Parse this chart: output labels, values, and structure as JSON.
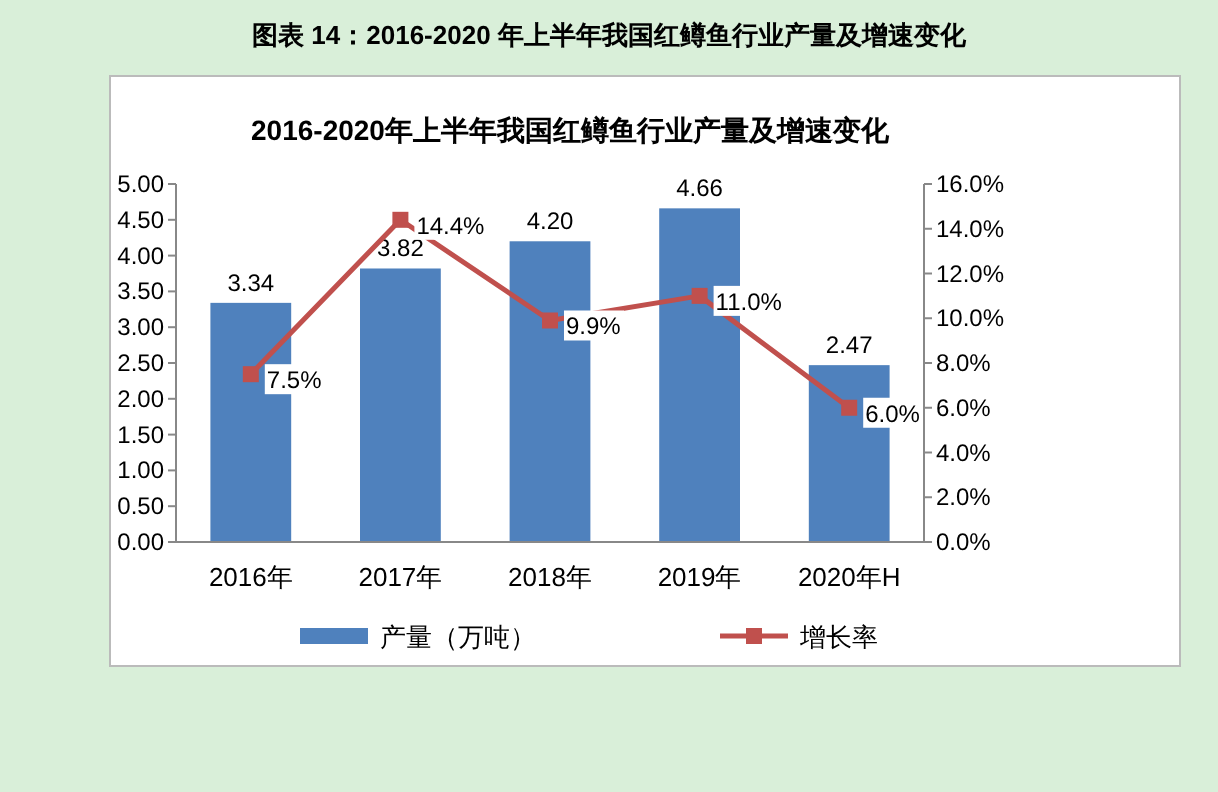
{
  "chart_data": {
    "type": "bar",
    "title": "图表  14：2016-2020 年上半年我国红鳟鱼行业产量及增速变化",
    "subtitle": "2016-2020年上半年我国红鳟鱼行业产量及增速变化",
    "categories": [
      "2016年",
      "2017年",
      "2018年",
      "2019年",
      "2020年H"
    ],
    "series": [
      {
        "name": "产量（万吨）",
        "color": "#4f81bd",
        "values": [
          3.34,
          3.82,
          4.2,
          4.66,
          2.47
        ],
        "value_labels": [
          "3.34",
          "3.82",
          "4.20",
          "4.66",
          "2.47"
        ]
      },
      {
        "name": "增长率",
        "type": "line",
        "axis": "y2",
        "color": "#c0504d",
        "values": [
          7.5,
          14.4,
          9.9,
          11.0,
          6.0
        ],
        "value_labels": [
          "7.5%",
          "14.4%",
          "9.9%",
          "11.0%",
          "6.0%"
        ]
      }
    ],
    "ylim": [
      0,
      5
    ],
    "yticks": [
      {
        "value": 0,
        "label": "0.00"
      },
      {
        "value": 0.5,
        "label": "0.50"
      },
      {
        "value": 1,
        "label": "1.00"
      },
      {
        "value": 1.5,
        "label": "1.50"
      },
      {
        "value": 2,
        "label": "2.00"
      },
      {
        "value": 2.5,
        "label": "2.50"
      },
      {
        "value": 3,
        "label": "3.00"
      },
      {
        "value": 3.5,
        "label": "3.50"
      },
      {
        "value": 4,
        "label": "4.00"
      },
      {
        "value": 4.5,
        "label": "4.50"
      },
      {
        "value": 5,
        "label": "5.00"
      }
    ],
    "y2lim": [
      0,
      16
    ],
    "y2ticks": [
      {
        "value": 0,
        "label": "0.0%"
      },
      {
        "value": 2,
        "label": "2.0%"
      },
      {
        "value": 4,
        "label": "4.0%"
      },
      {
        "value": 6,
        "label": "6.0%"
      },
      {
        "value": 8,
        "label": "8.0%"
      },
      {
        "value": 10,
        "label": "10.0%"
      },
      {
        "value": 12,
        "label": "12.0%"
      },
      {
        "value": 14,
        "label": "14.0%"
      },
      {
        "value": 16,
        "label": "16.0%"
      }
    ],
    "marker": "square",
    "legend": "bottom"
  }
}
